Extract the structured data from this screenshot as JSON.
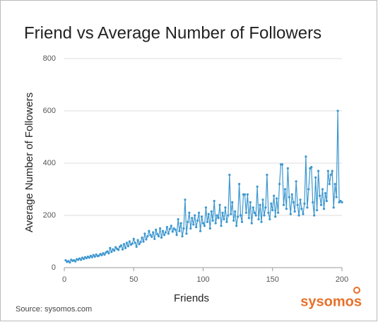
{
  "chart_data": {
    "type": "line",
    "title": "Friend vs Average Number of Followers",
    "x_label": "Friends",
    "y_label": "Average Number of Followers",
    "color": "#3d97cf",
    "grid": true,
    "xlim": [
      0,
      200
    ],
    "xticks": [
      0,
      50,
      100,
      150,
      200
    ],
    "ylim": [
      0,
      800
    ],
    "yticks": [
      0,
      200,
      400,
      600,
      800
    ],
    "x": [
      1,
      2,
      3,
      4,
      5,
      6,
      7,
      8,
      9,
      10,
      11,
      12,
      13,
      14,
      15,
      16,
      17,
      18,
      19,
      20,
      21,
      22,
      23,
      24,
      25,
      26,
      27,
      28,
      29,
      30,
      31,
      32,
      33,
      34,
      35,
      36,
      37,
      38,
      39,
      40,
      41,
      42,
      43,
      44,
      45,
      46,
      47,
      48,
      49,
      50,
      51,
      52,
      53,
      54,
      55,
      56,
      57,
      58,
      59,
      60,
      61,
      62,
      63,
      64,
      65,
      66,
      67,
      68,
      69,
      70,
      71,
      72,
      73,
      74,
      75,
      76,
      77,
      78,
      79,
      80,
      81,
      82,
      83,
      84,
      85,
      86,
      87,
      88,
      89,
      90,
      91,
      92,
      93,
      94,
      95,
      96,
      97,
      98,
      99,
      100,
      101,
      102,
      103,
      104,
      105,
      106,
      107,
      108,
      109,
      110,
      111,
      112,
      113,
      114,
      115,
      116,
      117,
      118,
      119,
      120,
      121,
      122,
      123,
      124,
      125,
      126,
      127,
      128,
      129,
      130,
      131,
      132,
      133,
      134,
      135,
      136,
      137,
      138,
      139,
      140,
      141,
      142,
      143,
      144,
      145,
      146,
      147,
      148,
      149,
      150,
      151,
      152,
      153,
      154,
      155,
      156,
      157,
      158,
      159,
      160,
      161,
      162,
      163,
      164,
      165,
      166,
      167,
      168,
      169,
      170,
      171,
      172,
      173,
      174,
      175,
      176,
      177,
      178,
      179,
      180,
      181,
      182,
      183,
      184,
      185,
      186,
      187,
      188,
      189,
      190,
      191,
      192,
      193,
      194,
      195,
      196,
      197,
      198,
      199,
      200
    ],
    "values": [
      28,
      22,
      25,
      20,
      30,
      26,
      28,
      24,
      32,
      30,
      35,
      30,
      38,
      33,
      40,
      36,
      42,
      38,
      45,
      40,
      48,
      42,
      50,
      44,
      46,
      52,
      48,
      55,
      50,
      58,
      62,
      55,
      75,
      60,
      70,
      65,
      78,
      72,
      68,
      80,
      85,
      70,
      90,
      75,
      95,
      82,
      100,
      88,
      92,
      110,
      95,
      80,
      105,
      90,
      98,
      115,
      100,
      130,
      108,
      120,
      140,
      125,
      118,
      135,
      110,
      145,
      128,
      120,
      150,
      115,
      140,
      125,
      135,
      155,
      130,
      148,
      160,
      138,
      150,
      145,
      125,
      185,
      140,
      170,
      120,
      150,
      260,
      130,
      175,
      210,
      150,
      190,
      165,
      200,
      155,
      180,
      210,
      140,
      195,
      170,
      160,
      230,
      175,
      205,
      150,
      215,
      180,
      255,
      170,
      200,
      190,
      240,
      160,
      210,
      185,
      230,
      175,
      200,
      355,
      205,
      250,
      180,
      215,
      160,
      195,
      320,
      200,
      175,
      280,
      280,
      210,
      280,
      190,
      250,
      170,
      230,
      210,
      200,
      310,
      185,
      240,
      175,
      260,
      200,
      230,
      355,
      210,
      185,
      245,
      220,
      275,
      195,
      265,
      210,
      320,
      395,
      395,
      240,
      300,
      225,
      380,
      270,
      205,
      280,
      250,
      215,
      330,
      240,
      200,
      260,
      225,
      205,
      245,
      425,
      230,
      300,
      380,
      385,
      250,
      200,
      345,
      220,
      370,
      275,
      240,
      300,
      225,
      285,
      255,
      370,
      320,
      355,
      370,
      230,
      320,
      270,
      600,
      250,
      255,
      250
    ]
  },
  "footer": {
    "source": "Source: sysomos.com",
    "logo": "sysomos"
  }
}
